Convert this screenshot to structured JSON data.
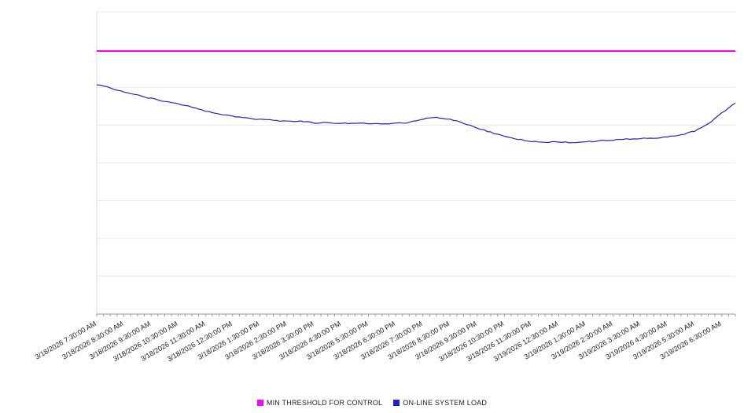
{
  "chart_data": {
    "type": "line",
    "title": "",
    "xlabel": "",
    "ylabel": "",
    "ylim": [
      0,
      100
    ],
    "y_axis_labels_visible": false,
    "grid": true,
    "grid_intervals": 8,
    "legend_position": "bottom",
    "x_tick_labels": [
      "3/18/2026 7:30:00 AM",
      "3/18/2026 8:30:00 AM",
      "3/18/2026 9:30:00 AM",
      "3/18/2026 10:30:00 AM",
      "3/18/2026 11:30:00 AM",
      "3/18/2026 12:30:00 PM",
      "3/18/2026 1:30:00 PM",
      "3/18/2026 2:30:00 PM",
      "3/18/2026 3:30:00 PM",
      "3/18/2026 4:30:00 PM",
      "3/18/2026 5:30:00 PM",
      "3/18/2026 6:30:00 PM",
      "3/18/2026 7:30:00 PM",
      "3/18/2026 8:30:00 PM",
      "3/18/2026 9:30:00 PM",
      "3/18/2026 10:30:00 PM",
      "3/18/2026 11:30:00 PM",
      "3/19/2026 12:30:00 AM",
      "3/19/2026 1:30:00 AM",
      "3/19/2026 2:30:00 AM",
      "3/19/2026 3:30:00 AM",
      "3/19/2026 4:30:00 AM",
      "3/19/2026 5:30:00 AM",
      "3/19/2026 6:30:00 AM"
    ],
    "series": [
      {
        "name": "MIN THRESHOLD FOR CONTROL",
        "kind": "threshold",
        "color": "#ff00ff",
        "value": 87
      },
      {
        "name": "ON-LINE SYSTEM LOAD",
        "kind": "line",
        "color": "#2222cc",
        "step_hours": 0.5,
        "values": [
          76.0,
          74.8,
          73.6,
          72.4,
          71.3,
          70.4,
          69.5,
          68.5,
          67.2,
          66.3,
          65.4,
          64.9,
          64.4,
          64.1,
          63.7,
          63.9,
          63.2,
          63.4,
          63.0,
          63.2,
          63.0,
          62.9,
          63.1,
          63.3,
          64.6,
          65.0,
          64.4,
          63.2,
          61.6,
          60.1,
          58.8,
          57.8,
          57.1,
          56.9,
          57.0,
          56.7,
          57.0,
          57.3,
          57.6,
          57.9,
          58.1,
          58.2,
          58.6,
          59.3,
          60.5,
          62.8,
          66.5,
          69.8
        ]
      }
    ]
  }
}
